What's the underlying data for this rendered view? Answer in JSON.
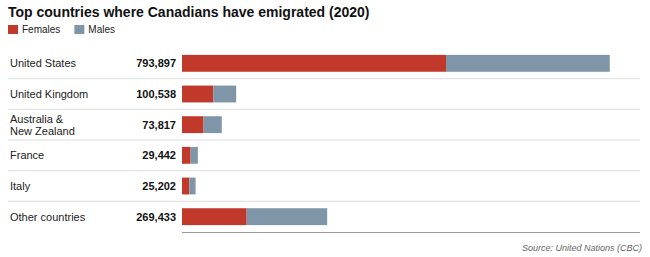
{
  "chart_data": {
    "type": "bar",
    "orientation": "horizontal",
    "stacked": true,
    "title": "Top countries where Canadians have emigrated (2020)",
    "categories": [
      "United States",
      "United Kingdom",
      "Australia &\nNew Zealand",
      "France",
      "Italy",
      "Other countries"
    ],
    "series": [
      {
        "name": "Females",
        "color": "#c0392b",
        "values": [
          490000,
          58000,
          40000,
          16000,
          13500,
          120000
        ]
      },
      {
        "name": "Males",
        "color": "#7f96a8",
        "values": [
          303897,
          42538,
          33817,
          13442,
          11702,
          149433
        ]
      }
    ],
    "totals": [
      793897,
      100538,
      73817,
      29442,
      25202,
      269433
    ],
    "total_labels": [
      "793,897",
      "100,538",
      "73,817",
      "29,442",
      "25,202",
      "269,433"
    ],
    "xlim": [
      0,
      850000
    ],
    "tick_labels": false,
    "legend": "top-left",
    "source": "Source: United Nations (CBC)"
  }
}
